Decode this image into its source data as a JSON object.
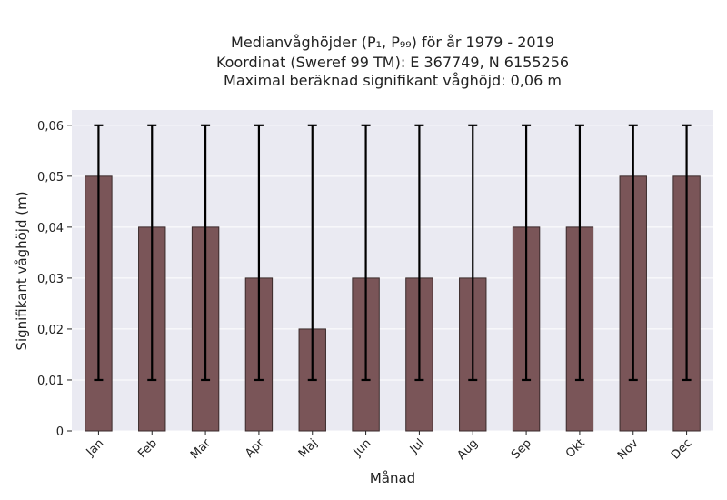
{
  "chart_data": {
    "type": "bar",
    "title_lines": [
      "Medianvåghöjder (P₁, P₉₉) för år 1979 - 2019",
      "Koordinat (Sweref 99 TM): E 367749, N 6155256",
      "Maximal beräknad signifikant våghöjd: 0,06 m"
    ],
    "xlabel": "Månad",
    "ylabel": "Signifikant våghöjd (m)",
    "categories": [
      "Jan",
      "Feb",
      "Mar",
      "Apr",
      "Maj",
      "Jun",
      "Jul",
      "Aug",
      "Sep",
      "Okt",
      "Nov",
      "Dec"
    ],
    "values": [
      0.05,
      0.04,
      0.04,
      0.03,
      0.02,
      0.03,
      0.03,
      0.03,
      0.04,
      0.04,
      0.05,
      0.05
    ],
    "error_low": [
      0.01,
      0.01,
      0.01,
      0.01,
      0.01,
      0.01,
      0.01,
      0.01,
      0.01,
      0.01,
      0.01,
      0.01
    ],
    "error_high": [
      0.06,
      0.06,
      0.06,
      0.06,
      0.06,
      0.06,
      0.06,
      0.06,
      0.06,
      0.06,
      0.06,
      0.06
    ],
    "ylim": [
      0,
      0.063
    ],
    "yticks": [
      0,
      0.01,
      0.02,
      0.03,
      0.04,
      0.05,
      0.06
    ],
    "ytick_labels": [
      "0",
      "0,01",
      "0,02",
      "0,03",
      "0,04",
      "0,05",
      "0,06"
    ],
    "grid": true,
    "colors": {
      "bar": "#7a5558",
      "background": "#eaeaf2",
      "errorbar": "#000000"
    }
  }
}
